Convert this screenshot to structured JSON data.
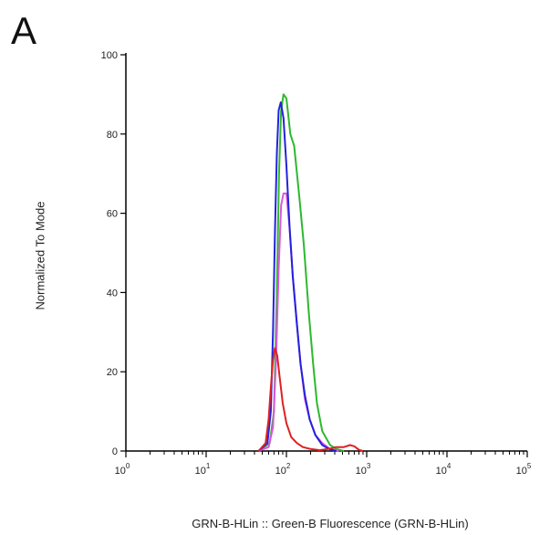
{
  "panel_label": "A",
  "chart_data": {
    "type": "line",
    "title": "",
    "xlabel": "GRN-B-HLin :: Green-B Fluorescence (GRN-B-HLin)",
    "ylabel": "Normalized To Mode",
    "x_scale": "log",
    "xlim": [
      1,
      100000
    ],
    "ylim": [
      0,
      100
    ],
    "x_ticks": [
      {
        "value": 1,
        "base": "10",
        "exp": "0"
      },
      {
        "value": 10,
        "base": "10",
        "exp": "1"
      },
      {
        "value": 100,
        "base": "10",
        "exp": "2"
      },
      {
        "value": 1000,
        "base": "10",
        "exp": "3"
      },
      {
        "value": 10000,
        "base": "10",
        "exp": "4"
      },
      {
        "value": 100000,
        "base": "10",
        "exp": "5"
      }
    ],
    "y_ticks": [
      0,
      20,
      40,
      60,
      80,
      100
    ],
    "grid": false,
    "series": [
      {
        "color": "#2eb82e",
        "points": [
          [
            45,
            0
          ],
          [
            62,
            2
          ],
          [
            70,
            10
          ],
          [
            76,
            40
          ],
          [
            81,
            70
          ],
          [
            86,
            86
          ],
          [
            92,
            90
          ],
          [
            100,
            89
          ],
          [
            112,
            80
          ],
          [
            125,
            77
          ],
          [
            145,
            64
          ],
          [
            165,
            52
          ],
          [
            190,
            35
          ],
          [
            215,
            22
          ],
          [
            240,
            12
          ],
          [
            280,
            5
          ],
          [
            350,
            1.5
          ],
          [
            420,
            0.5
          ],
          [
            520,
            0
          ]
        ]
      },
      {
        "color": "#dd55dd",
        "points": [
          [
            45,
            0
          ],
          [
            60,
            1
          ],
          [
            68,
            6
          ],
          [
            74,
            22
          ],
          [
            80,
            46
          ],
          [
            86,
            62
          ],
          [
            92,
            65
          ],
          [
            100,
            65
          ],
          [
            110,
            56
          ],
          [
            120,
            44
          ],
          [
            135,
            32
          ],
          [
            150,
            22
          ],
          [
            170,
            13
          ],
          [
            195,
            8
          ],
          [
            230,
            4
          ],
          [
            280,
            2
          ],
          [
            350,
            0.5
          ],
          [
            450,
            0
          ]
        ]
      },
      {
        "color": "#2222dd",
        "points": [
          [
            45,
            0
          ],
          [
            58,
            2
          ],
          [
            64,
            10
          ],
          [
            68,
            30
          ],
          [
            72,
            55
          ],
          [
            76,
            75
          ],
          [
            80,
            86
          ],
          [
            85,
            88
          ],
          [
            92,
            84
          ],
          [
            100,
            72
          ],
          [
            110,
            56
          ],
          [
            120,
            44
          ],
          [
            135,
            32
          ],
          [
            150,
            22
          ],
          [
            170,
            14
          ],
          [
            195,
            8
          ],
          [
            230,
            4
          ],
          [
            280,
            1.5
          ],
          [
            340,
            0.5
          ],
          [
            420,
            0
          ]
        ]
      },
      {
        "color": "#dd2222",
        "points": [
          [
            45,
            0
          ],
          [
            55,
            2
          ],
          [
            60,
            8
          ],
          [
            64,
            16
          ],
          [
            68,
            23
          ],
          [
            72,
            26
          ],
          [
            77,
            24
          ],
          [
            82,
            19
          ],
          [
            90,
            12
          ],
          [
            100,
            7
          ],
          [
            115,
            3.5
          ],
          [
            135,
            2
          ],
          [
            160,
            1
          ],
          [
            200,
            0.5
          ],
          [
            260,
            0.2
          ],
          [
            330,
            0.5
          ],
          [
            420,
            1
          ],
          [
            520,
            1
          ],
          [
            620,
            1.5
          ],
          [
            700,
            1.2
          ],
          [
            800,
            0.3
          ],
          [
            900,
            0
          ]
        ]
      }
    ]
  }
}
